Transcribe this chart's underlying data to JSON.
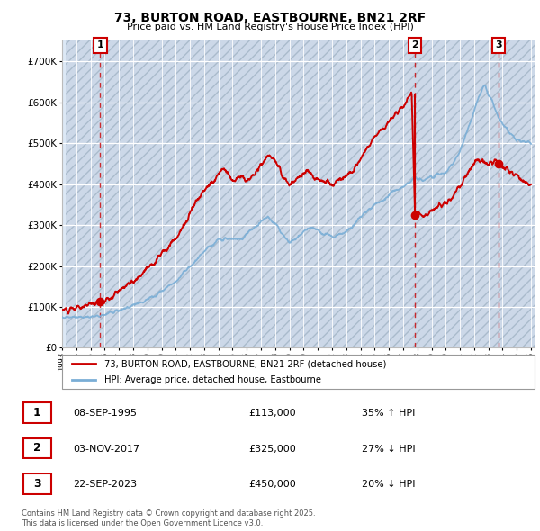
{
  "title_line1": "73, BURTON ROAD, EASTBOURNE, BN21 2RF",
  "title_line2": "Price paid vs. HM Land Registry's House Price Index (HPI)",
  "legend_label_red": "73, BURTON ROAD, EASTBOURNE, BN21 2RF (detached house)",
  "legend_label_blue": "HPI: Average price, detached house, Eastbourne",
  "transactions": [
    {
      "num": 1,
      "date": "08-SEP-1995",
      "price": 113000,
      "year": 1995.69,
      "hpi_rel": "35% ↑ HPI"
    },
    {
      "num": 2,
      "date": "03-NOV-2017",
      "price": 325000,
      "year": 2017.84,
      "hpi_rel": "27% ↓ HPI"
    },
    {
      "num": 3,
      "date": "22-SEP-2023",
      "price": 450000,
      "year": 2023.72,
      "hpi_rel": "20% ↓ HPI"
    }
  ],
  "footnote_line1": "Contains HM Land Registry data © Crown copyright and database right 2025.",
  "footnote_line2": "This data is licensed under the Open Government Licence v3.0.",
  "red_color": "#cc0000",
  "blue_color": "#7aaed6",
  "ylim": [
    0,
    750000
  ],
  "xlim_start": 1993.25,
  "xlim_end": 2026.25,
  "yticks": [
    0,
    100000,
    200000,
    300000,
    400000,
    500000,
    600000,
    700000
  ],
  "ytick_labels": [
    "£0",
    "£100K",
    "£200K",
    "£300K",
    "£400K",
    "£500K",
    "£600K",
    "£700K"
  ],
  "xtick_start": 1993,
  "xtick_end": 2026,
  "plot_bg": "#dce8f5",
  "hatch_bg": "#ccd8e8"
}
